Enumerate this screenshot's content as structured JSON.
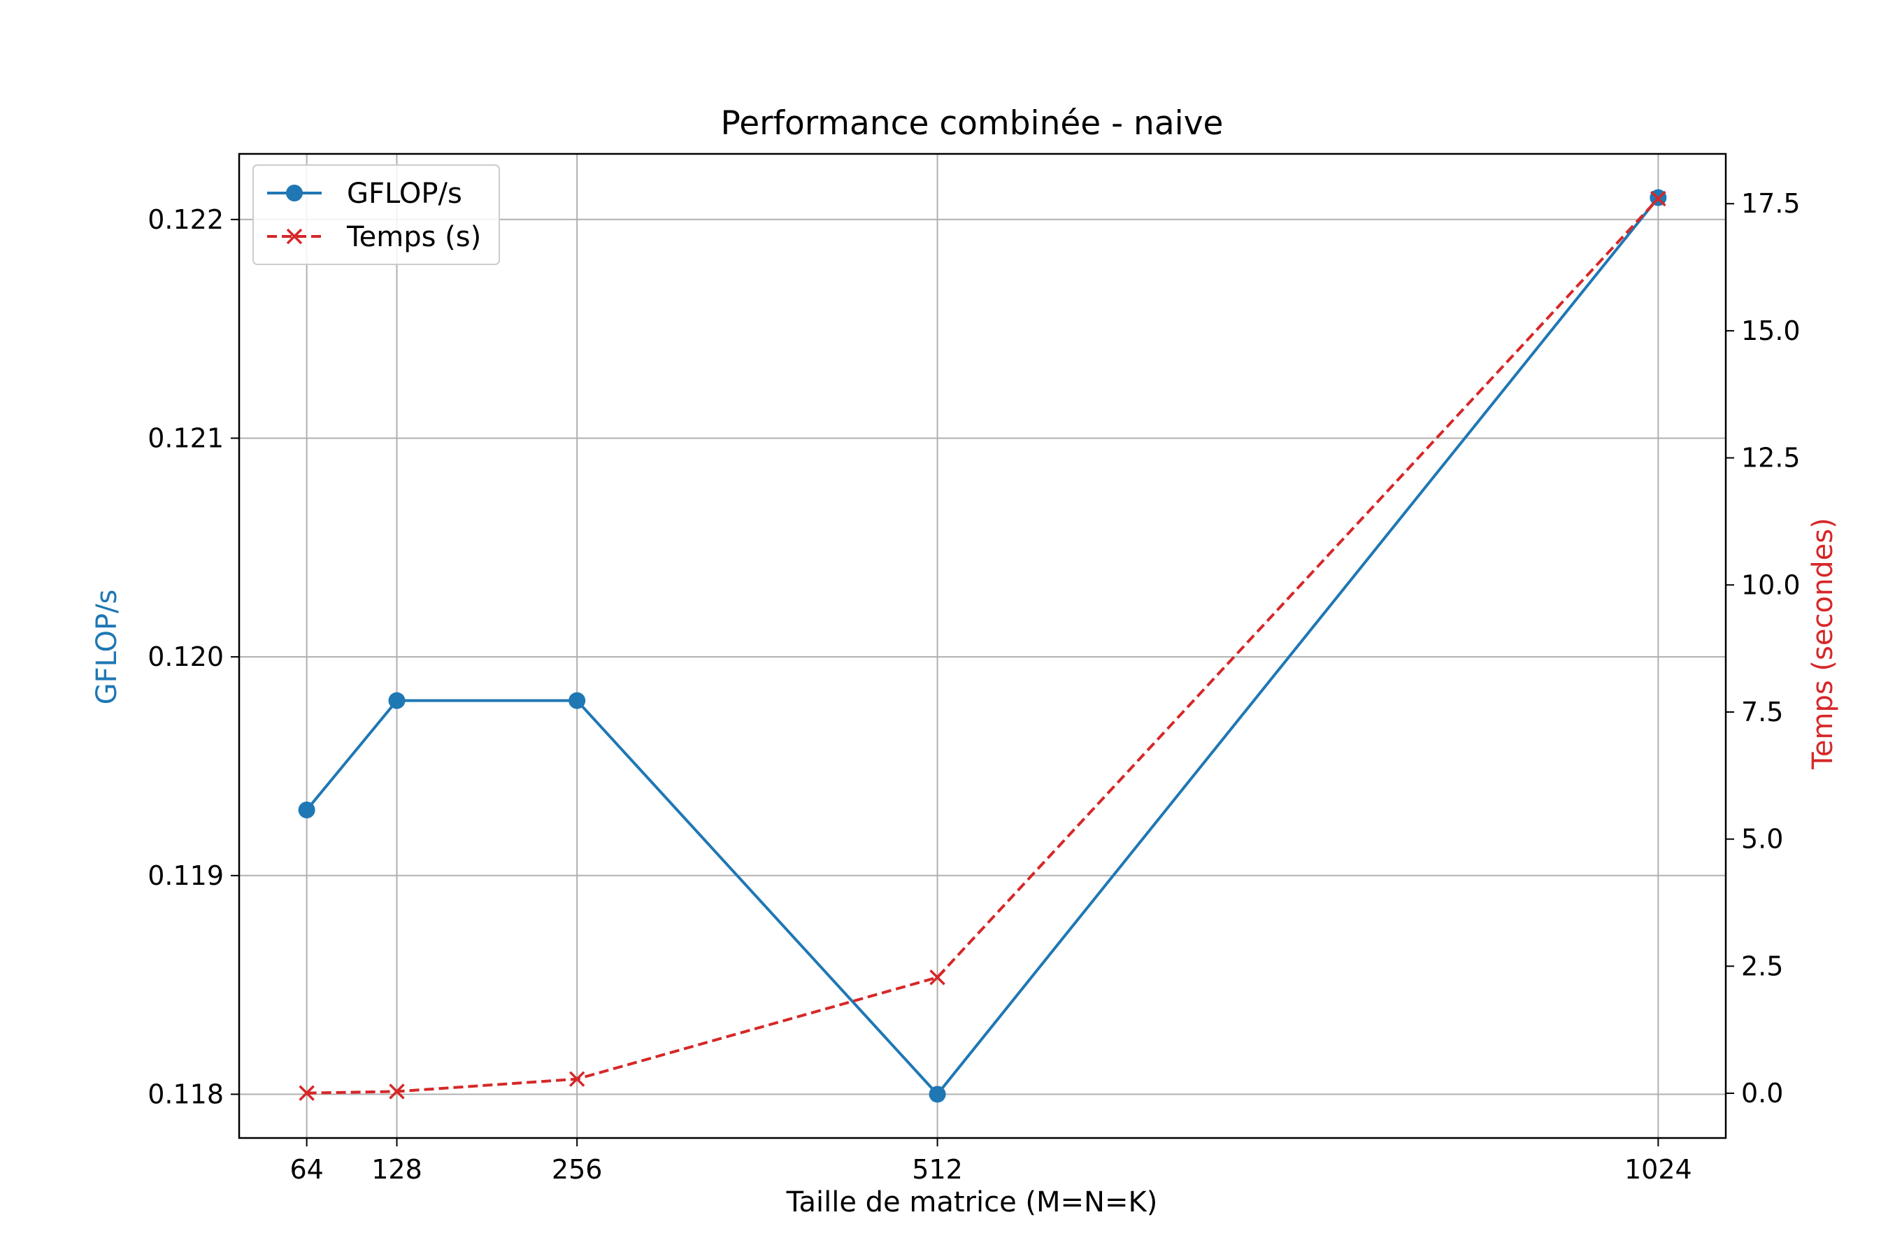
{
  "chart_data": {
    "type": "line",
    "title": "Performance combinée - naive",
    "xlabel": "Taille de matrice (M=N=K)",
    "ylabel": "GFLOP/s",
    "y2label": "Temps (secondes)",
    "x": [
      64,
      128,
      256,
      512,
      1024
    ],
    "x_tick_labels": [
      "64",
      "128",
      "256",
      "512",
      "1024"
    ],
    "xlim": [
      16,
      1072
    ],
    "ylim": [
      0.1178,
      0.1223
    ],
    "y_ticks": [
      0.118,
      0.119,
      0.12,
      0.121,
      0.122
    ],
    "y_tick_labels": [
      "0.118",
      "0.119",
      "0.120",
      "0.121",
      "0.122"
    ],
    "y2lim": [
      -0.88,
      18.48
    ],
    "y2_ticks": [
      0,
      2.5,
      5,
      7.5,
      10,
      12.5,
      15,
      17.5
    ],
    "y2_tick_labels": [
      "0.0",
      "2.5",
      "5.0",
      "7.5",
      "10.0",
      "12.5",
      "15.0",
      "17.5"
    ],
    "grid": true,
    "legend_position": "top-left",
    "series": [
      {
        "name": "GFLOP/s",
        "axis": "left",
        "values": [
          0.1193,
          0.1198,
          0.1198,
          0.118,
          0.1221
        ],
        "color": "#1f77b4",
        "line_style": "solid",
        "marker": "circle"
      },
      {
        "name": "Temps (s)",
        "axis": "right",
        "values": [
          0.004,
          0.035,
          0.28,
          2.28,
          17.6
        ],
        "color": "#d62728",
        "line_style": "dashed",
        "marker": "x"
      }
    ]
  }
}
